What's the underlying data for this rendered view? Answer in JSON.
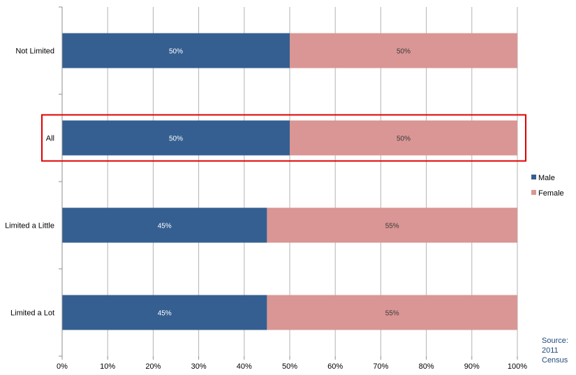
{
  "chart_data": {
    "type": "bar",
    "orientation": "horizontal",
    "stacked": "percent",
    "categories": [
      "Not Limited",
      "All",
      "Limited a Little",
      "Limited a Lot"
    ],
    "series": [
      {
        "name": "Male",
        "values": [
          50,
          50,
          45,
          45
        ],
        "labels": [
          "50%",
          "50%",
          "45%",
          "45%"
        ],
        "color": "#355f91"
      },
      {
        "name": "Female",
        "values": [
          50,
          50,
          55,
          55
        ],
        "labels": [
          "50%",
          "50%",
          "55%",
          "55%"
        ],
        "color": "#d99694"
      }
    ],
    "x_ticks": [
      "0%",
      "10%",
      "20%",
      "30%",
      "40%",
      "50%",
      "60%",
      "70%",
      "80%",
      "90%",
      "100%"
    ],
    "xlim": [
      0,
      100
    ],
    "grid": true,
    "legend": "right",
    "highlight": {
      "category": "All",
      "color": "#e00000"
    },
    "source": [
      "Source:",
      "2011",
      "Census"
    ]
  }
}
